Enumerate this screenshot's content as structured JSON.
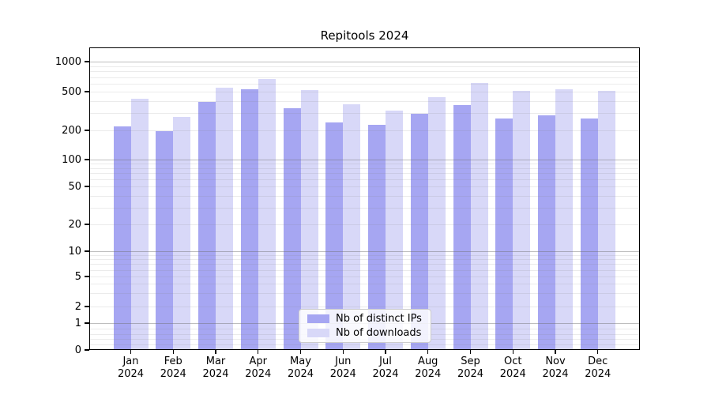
{
  "chart_data": {
    "type": "bar",
    "title": "Repitools 2024",
    "categories": [
      "Jan",
      "Feb",
      "Mar",
      "Apr",
      "May",
      "Jun",
      "Jul",
      "Aug",
      "Sep",
      "Oct",
      "Nov",
      "Dec"
    ],
    "year_label": "2024",
    "series": [
      {
        "name": "Nb of distinct IPs",
        "color": "#a6a6f2",
        "values": [
          218,
          196,
          391,
          529,
          335,
          239,
          229,
          296,
          361,
          266,
          284,
          265
        ]
      },
      {
        "name": "Nb of downloads",
        "color": "#d8d8f8",
        "values": [
          423,
          276,
          544,
          665,
          514,
          374,
          321,
          435,
          610,
          508,
          529,
          509
        ]
      }
    ],
    "yscale": "symlog",
    "ytick_values": [
      0,
      1,
      2,
      5,
      10,
      20,
      50,
      100,
      200,
      500,
      1000
    ],
    "ytick_labels": [
      "0",
      "1",
      "2",
      "5",
      "10",
      "20",
      "50",
      "100",
      "200",
      "500",
      "1000"
    ],
    "ylim": [
      0,
      1400
    ],
    "grid": true,
    "legend_position": "lower center"
  }
}
